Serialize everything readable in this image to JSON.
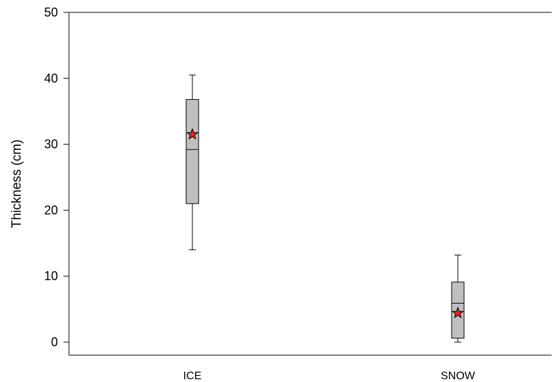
{
  "chart_data": {
    "type": "box",
    "categories": [
      "ICE",
      "SNOW"
    ],
    "ylabel": "Thickness (cm)",
    "xlabel": "",
    "ylim": [
      0,
      50
    ],
    "yticks": [
      0,
      10,
      20,
      30,
      40,
      50
    ],
    "ytick_labels": [
      "0",
      "10",
      "20",
      "30",
      "40",
      "50"
    ],
    "boxes": [
      {
        "category": "ICE",
        "whisker_low": 14.0,
        "q1": 21.0,
        "median": 29.2,
        "q3": 36.8,
        "whisker_high": 40.5,
        "mean": 31.5
      },
      {
        "category": "SNOW",
        "whisker_low": 0.0,
        "q1": 0.6,
        "median": 5.9,
        "q3": 9.1,
        "whisker_high": 13.2,
        "mean": 4.4
      }
    ],
    "grid": false,
    "box_color": "#c0c0c0",
    "mean_marker_color": "#e8231f",
    "mean_marker": "star"
  }
}
